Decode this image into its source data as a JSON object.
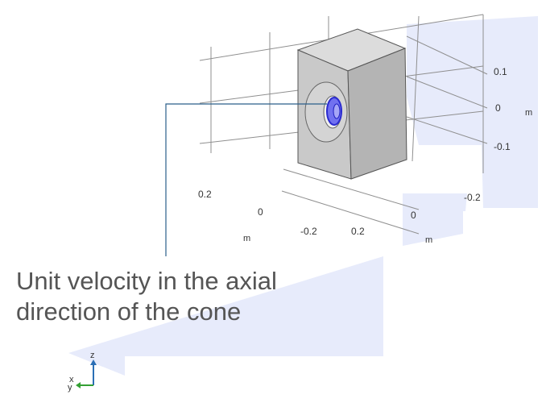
{
  "scene": {
    "annotation": {
      "line1": "Unit velocity in the axial",
      "line2": "direction of the cone"
    },
    "axis_ticks": {
      "z_ticks": [
        "0.1",
        "0",
        "-0.1"
      ],
      "z_unit": "m",
      "right_y_tick": "-0.2",
      "right_bottom_tick": "0",
      "right_unit": "m",
      "left_tick_top": "0.2",
      "left_tick_mid": "0",
      "left_unit": "m",
      "bottom_tick_a": "-0.2",
      "bottom_tick_b": "0.2"
    },
    "triad": {
      "x_label": "x",
      "y_label": "y",
      "z_label": "z"
    },
    "colors": {
      "highlight_plane": "#e7ebfb",
      "block_front": "#c9c9c9",
      "block_top": "#dcdcdc",
      "block_side": "#b4b4b4",
      "selected_face": "#3b3bf0",
      "annotation_leader": "#2b5f8a",
      "grid": "#8f8f8f",
      "triad_z": "#2b6fb5",
      "triad_y": "#33a033"
    }
  }
}
